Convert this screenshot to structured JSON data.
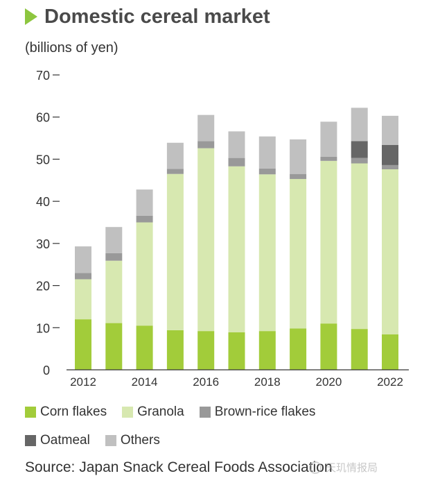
{
  "header": {
    "title": "Domestic cereal market",
    "unit": "(billions of yen)"
  },
  "chart_data": {
    "type": "stacked-bar",
    "title": "Domestic cereal market",
    "ylabel": "(billions of yen)",
    "ylim": [
      0,
      70
    ],
    "yticks": [
      0,
      10,
      20,
      30,
      40,
      50,
      60,
      70
    ],
    "ytick_labels": [
      "0",
      "10",
      "20",
      "30",
      "40",
      "50",
      "60",
      "70"
    ],
    "categories": [
      "2012",
      "2013",
      "2014",
      "2015",
      "2016",
      "2017",
      "2018",
      "2019",
      "2020",
      "2021",
      "2022"
    ],
    "xtick_labels": [
      "2012",
      "",
      "2014",
      "",
      "2016",
      "",
      "2018",
      "",
      "2020",
      "",
      "2022"
    ],
    "series": [
      {
        "name": "Corn flakes",
        "color": "#a2cc3a",
        "values": [
          12.0,
          11.1,
          10.5,
          9.4,
          9.2,
          8.9,
          9.2,
          9.8,
          11.0,
          9.7,
          8.4
        ]
      },
      {
        "name": "Granola",
        "color": "#d7e8b0",
        "values": [
          9.5,
          14.8,
          24.5,
          37.1,
          43.4,
          39.4,
          37.2,
          35.5,
          38.6,
          39.3,
          39.2
        ]
      },
      {
        "name": "Brown-rice flakes",
        "color": "#999999",
        "values": [
          1.5,
          1.8,
          1.6,
          1.2,
          1.7,
          2.0,
          1.4,
          1.2,
          1.0,
          1.3,
          1.0
        ]
      },
      {
        "name": "Oatmeal",
        "color": "#666666",
        "values": [
          0,
          0,
          0,
          0,
          0,
          0,
          0,
          0,
          0,
          4.0,
          4.8
        ]
      },
      {
        "name": "Others",
        "color": "#c0c0c0",
        "values": [
          6.3,
          6.2,
          6.2,
          6.2,
          6.2,
          6.3,
          7.6,
          8.2,
          8.3,
          7.9,
          6.9
        ]
      }
    ]
  },
  "legend": {
    "row1": [
      {
        "label": "Corn flakes",
        "color": "#a2cc3a"
      },
      {
        "label": "Granola",
        "color": "#d7e8b0"
      },
      {
        "label": "Brown-rice flakes",
        "color": "#999999"
      }
    ],
    "row2": [
      {
        "label": "Oatmeal",
        "color": "#666666"
      },
      {
        "label": "Others",
        "color": "#c0c0c0"
      }
    ]
  },
  "footer": {
    "source": "Source: Japan Snack Cereal Foods Association",
    "watermark": "天玑情报局"
  }
}
